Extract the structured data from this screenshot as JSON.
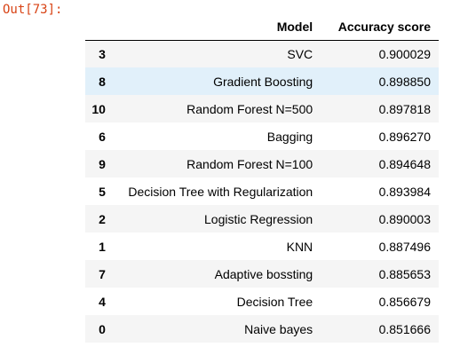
{
  "output": {
    "prompt": "Out[73]:"
  },
  "table": {
    "columns": [
      "",
      "Model",
      "Accuracy score"
    ],
    "rows": [
      {
        "index": "3",
        "model": "SVC",
        "score": "0.900029"
      },
      {
        "index": "8",
        "model": "Gradient Boosting",
        "score": "0.898850"
      },
      {
        "index": "10",
        "model": "Random Forest N=500",
        "score": "0.897818"
      },
      {
        "index": "6",
        "model": "Bagging",
        "score": "0.896270"
      },
      {
        "index": "9",
        "model": "Random Forest N=100",
        "score": "0.894648"
      },
      {
        "index": "5",
        "model": "Decision Tree with Regularization",
        "score": "0.893984"
      },
      {
        "index": "2",
        "model": "Logistic Regression",
        "score": "0.890003"
      },
      {
        "index": "1",
        "model": "KNN",
        "score": "0.887496"
      },
      {
        "index": "7",
        "model": "Adaptive bossting",
        "score": "0.885653"
      },
      {
        "index": "4",
        "model": "Decision Tree",
        "score": "0.856679"
      },
      {
        "index": "0",
        "model": "Naive bayes",
        "score": "0.851666"
      }
    ],
    "highlighted_row": 1,
    "colors": {
      "prompt": "#d84315",
      "stripe": "#f5f5f5",
      "hover": "#e1f0fa"
    }
  }
}
